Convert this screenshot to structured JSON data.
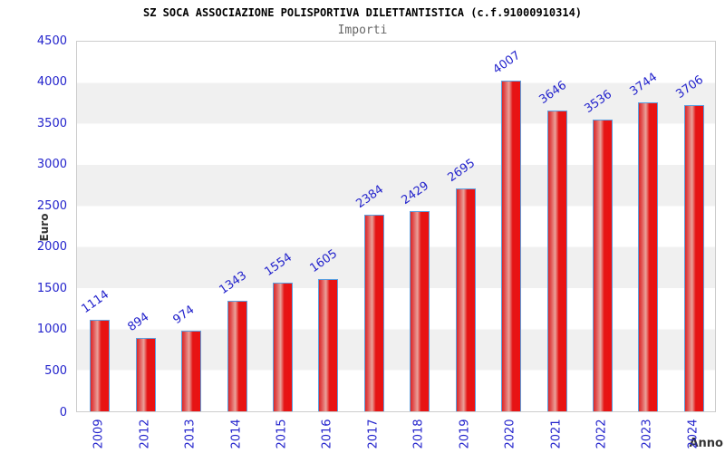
{
  "header": {
    "title": "SZ SOCA ASSOCIAZIONE POLISPORTIVA DILETTANTISTICA (c.f.91000910314)",
    "subtitle": "Importi"
  },
  "chart_data": {
    "type": "bar",
    "title": "SZ SOCA ASSOCIAZIONE POLISPORTIVA DILETTANTISTICA (c.f.91000910314)",
    "subtitle": "Importi",
    "xlabel": "Anno",
    "ylabel": "Euro",
    "categories": [
      "2009",
      "2012",
      "2013",
      "2014",
      "2015",
      "2016",
      "2017",
      "2018",
      "2019",
      "2020",
      "2021",
      "2022",
      "2023",
      "2024"
    ],
    "values": [
      1114,
      894,
      974,
      1343,
      1554,
      1605,
      2384,
      2429,
      2695,
      4007,
      3646,
      3536,
      3744,
      3706
    ],
    "ylim": [
      0,
      4500
    ],
    "ytick_step": 500,
    "yticks": [
      0,
      500,
      1000,
      1500,
      2000,
      2500,
      3000,
      3500,
      4000,
      4500
    ],
    "grid": "alternating-horizontal-bands",
    "legend": "none",
    "value_labels_rotation_deg": -35,
    "xtick_rotation_deg": -90,
    "colors": {
      "bar_fill_main": "#ec1111",
      "bar_fill_highlight": "#e9a29a",
      "bar_border": "#5ba0e0",
      "axis_text": "#2323cc",
      "value_label_text": "#2323cc",
      "band_gray": "#f0f0f0",
      "band_white": "#ffffff",
      "plot_border": "#cccccc",
      "title_text": "#000000",
      "subtitle_text": "#666666",
      "axis_title_text": "#333333"
    }
  }
}
